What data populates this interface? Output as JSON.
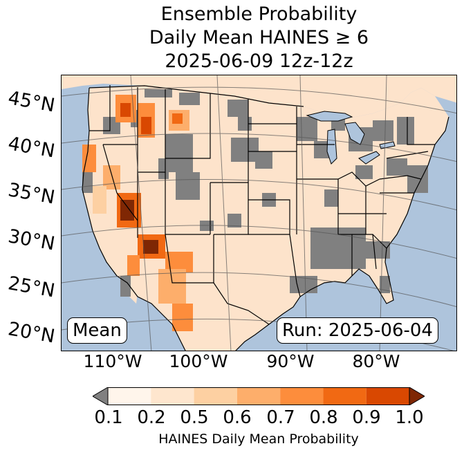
{
  "title": {
    "line1": "Ensemble Probability",
    "line2": "Daily Mean HAINES ≥ 6",
    "line3": "2025-06-09 12z-12z"
  },
  "latitude_labels": [
    "45°N",
    "40°N",
    "35°N",
    "30°N",
    "25°N",
    "20°N"
  ],
  "longitude_labels": [
    "110°W",
    "100°W",
    "90°W",
    "80°W"
  ],
  "boxes": {
    "left_text": "Mean",
    "right_text": "Run: 2025-06-04"
  },
  "colorbar": {
    "ticks": [
      "0.1",
      "0.2",
      "0.5",
      "0.6",
      "0.7",
      "0.8",
      "0.9",
      "1.0"
    ],
    "title": "HAINES Daily Mean Probability",
    "under_color": "#808080",
    "over_color": "#7f2704",
    "colors": [
      "#fff5eb",
      "#fee6ce",
      "#fdd0a2",
      "#fdae6b",
      "#fd8d3c",
      "#f16913",
      "#d94801"
    ]
  },
  "colors": {
    "ocean": "#aec4dc",
    "land": "#fde3cb",
    "missing_gray": "#808080",
    "lakes": "#aec4dc"
  }
}
